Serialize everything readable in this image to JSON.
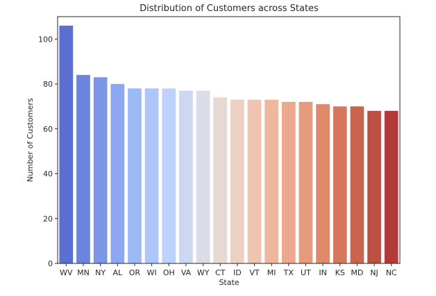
{
  "chart_data": {
    "type": "bar",
    "title": "Distribution of Customers across States",
    "xlabel": "State",
    "ylabel": "Number of Customers",
    "categories": [
      "WV",
      "MN",
      "NY",
      "AL",
      "OR",
      "WI",
      "OH",
      "VA",
      "WY",
      "CT",
      "ID",
      "VT",
      "MI",
      "TX",
      "UT",
      "IN",
      "KS",
      "MD",
      "NJ",
      "NC"
    ],
    "values": [
      106,
      84,
      83,
      80,
      78,
      78,
      78,
      77,
      77,
      74,
      73,
      73,
      73,
      72,
      72,
      71,
      70,
      70,
      68,
      68
    ],
    "colors": [
      "#5a6fd0",
      "#6b84dc",
      "#7b96e6",
      "#8da8f0",
      "#9db9f6",
      "#adc6fa",
      "#bdd1fa",
      "#ccd8f2",
      "#dbdce8",
      "#e6d8d2",
      "#ecd0c2",
      "#eec5b1",
      "#eeb89f",
      "#ebaa8d",
      "#e59a7b",
      "#de8a6b",
      "#d4775c",
      "#c9654e",
      "#bc5043",
      "#b23a3a"
    ],
    "ylim": [
      0,
      110
    ],
    "yticks": [
      0,
      20,
      40,
      60,
      80,
      100
    ],
    "grid": false,
    "legend": "none"
  }
}
